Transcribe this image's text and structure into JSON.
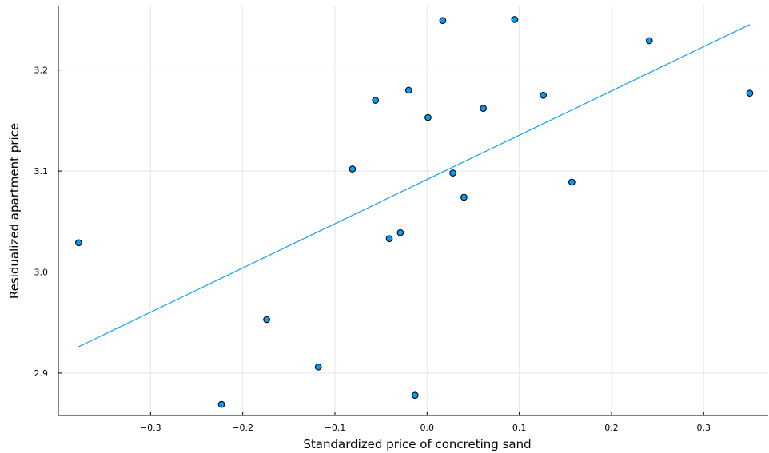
{
  "chart_data": {
    "type": "scatter",
    "title": "",
    "xlabel": "Standardized price of concreting sand",
    "ylabel": "Residualized apartment price",
    "xlim": [
      -0.4,
      0.37
    ],
    "ylim": [
      2.858,
      3.263
    ],
    "x_ticks": [
      -0.3,
      -0.2,
      -0.1,
      0.0,
      0.1,
      0.2,
      0.3
    ],
    "x_tick_labels": [
      "−0.3",
      "−0.2",
      "−0.1",
      "0.0",
      "0.1",
      "0.2",
      "0.3"
    ],
    "y_ticks": [
      2.9,
      3.0,
      3.1,
      3.2
    ],
    "y_tick_labels": [
      "2.9",
      "3.0",
      "3.1",
      "3.2"
    ],
    "grid": true,
    "legend": "none",
    "points": {
      "x": [
        -0.378,
        -0.223,
        -0.174,
        -0.118,
        -0.081,
        -0.056,
        -0.041,
        -0.029,
        -0.02,
        -0.013,
        0.001,
        0.017,
        0.028,
        0.04,
        0.061,
        0.095,
        0.126,
        0.157,
        0.241,
        0.35
      ],
      "y": [
        3.029,
        2.869,
        2.953,
        2.906,
        3.102,
        3.17,
        3.033,
        3.039,
        3.18,
        2.878,
        3.153,
        3.249,
        3.098,
        3.074,
        3.162,
        3.25,
        3.175,
        3.089,
        3.229,
        3.177
      ]
    },
    "fit_line": {
      "x": [
        -0.378,
        0.35
      ],
      "y": [
        2.926,
        3.245
      ]
    },
    "colors": {
      "point_fill": "#009af9",
      "point_stroke": "#000000",
      "line": "#009af9"
    }
  }
}
